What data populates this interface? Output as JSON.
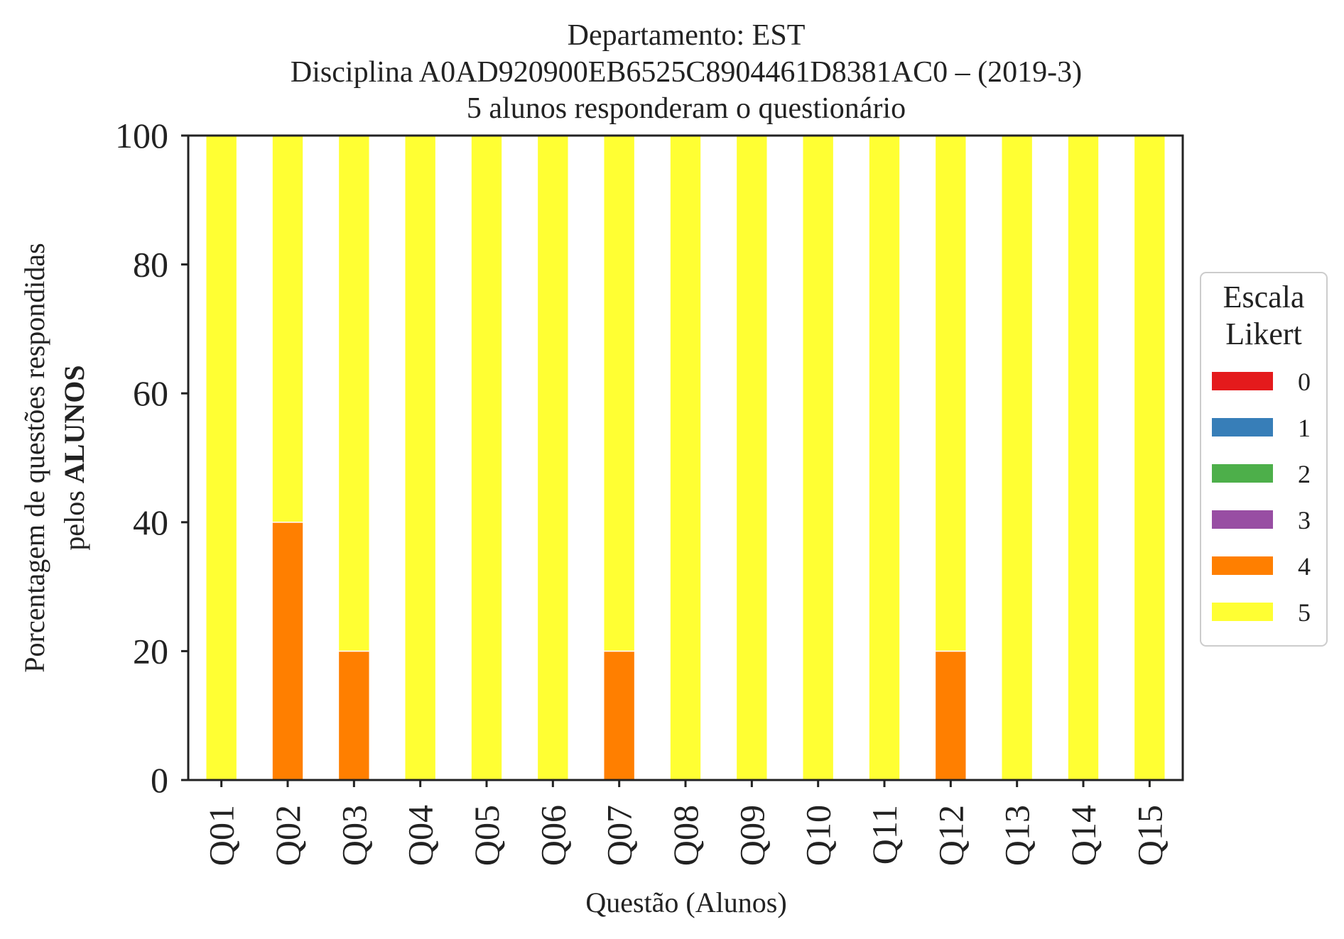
{
  "chart_data": {
    "type": "bar",
    "stacked": true,
    "title_lines": [
      "Departamento: EST",
      "Disciplina A0AD920900EB6525C8904461D8381AC0 – (2019-3)",
      "5 alunos responderam o questionário"
    ],
    "xlabel": "Questão (Alunos)",
    "ylabel_line1": "Porcentagem de questões respondidas",
    "ylabel_line2_prefix": "pelos",
    "ylabel_line2_bold": "ALUNOS",
    "ylim": [
      0,
      100
    ],
    "yticks": [
      "0",
      "20",
      "40",
      "60",
      "80",
      "100"
    ],
    "categories": [
      "Q01",
      "Q02",
      "Q03",
      "Q04",
      "Q05",
      "Q06",
      "Q07",
      "Q08",
      "Q09",
      "Q10",
      "Q11",
      "Q12",
      "Q13",
      "Q14",
      "Q15"
    ],
    "series": [
      {
        "name": "0",
        "color": "#e41a1c",
        "values": [
          0,
          0,
          0,
          0,
          0,
          0,
          0,
          0,
          0,
          0,
          0,
          0,
          0,
          0,
          0
        ]
      },
      {
        "name": "1",
        "color": "#377eb8",
        "values": [
          0,
          0,
          0,
          0,
          0,
          0,
          0,
          0,
          0,
          0,
          0,
          0,
          0,
          0,
          0
        ]
      },
      {
        "name": "2",
        "color": "#4daf4a",
        "values": [
          0,
          0,
          0,
          0,
          0,
          0,
          0,
          0,
          0,
          0,
          0,
          0,
          0,
          0,
          0
        ]
      },
      {
        "name": "3",
        "color": "#984ea3",
        "values": [
          0,
          0,
          0,
          0,
          0,
          0,
          0,
          0,
          0,
          0,
          0,
          0,
          0,
          0,
          0
        ]
      },
      {
        "name": "4",
        "color": "#ff7f00",
        "values": [
          0,
          40,
          20,
          0,
          0,
          0,
          20,
          0,
          0,
          0,
          0,
          20,
          0,
          0,
          0
        ]
      },
      {
        "name": "5",
        "color": "#ffff33",
        "values": [
          100,
          60,
          80,
          100,
          100,
          100,
          80,
          100,
          100,
          100,
          100,
          80,
          100,
          100,
          100
        ]
      }
    ],
    "legend": {
      "title_line1": "Escala",
      "title_line2": "Likert",
      "placement": "right-outside"
    },
    "grid": false
  }
}
